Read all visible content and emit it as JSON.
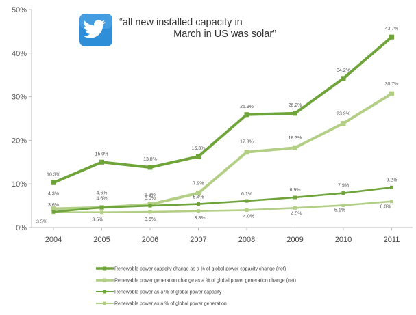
{
  "quote": {
    "icon": "twitter-bird-icon",
    "icon_color": "#2f8ed8",
    "line1": "“all new installed capacity in",
    "line2": "March in US was solar”"
  },
  "chart_data": {
    "type": "line",
    "title": "",
    "xlabel": "",
    "ylabel": "",
    "ylim": [
      0,
      50
    ],
    "yticks": [
      0,
      10,
      20,
      30,
      40,
      50
    ],
    "yticklabels": [
      "0%",
      "10%",
      "20%",
      "30%",
      "40%",
      "50%"
    ],
    "categories": [
      "2004",
      "2005",
      "2006",
      "2007",
      "2008",
      "2009",
      "2010",
      "2011"
    ],
    "grid": false,
    "legend_position": "bottom",
    "series": [
      {
        "name": "Renewable power capacity change as a % of global power capacity change (net)",
        "color": "#6fa43a",
        "values": [
          10.3,
          15.0,
          13.8,
          16.3,
          25.9,
          26.2,
          34.2,
          43.7
        ],
        "labels": [
          "10.3%",
          "15.0%",
          "13.8%",
          "16.3%",
          "25.9%",
          "26.2%",
          "34.2%",
          "43.7%"
        ]
      },
      {
        "name": "Renewable power generation change as a % of global power generation change (net)",
        "color": "#b3cf86",
        "values": [
          4.3,
          4.6,
          5.3,
          7.9,
          17.3,
          18.3,
          23.9,
          30.7
        ],
        "labels": [
          "4.3%",
          "4.6%",
          "5.3%",
          "7.9%",
          "17.3%",
          "18.3%",
          "23.9%",
          "30.7%"
        ]
      },
      {
        "name": "Renewable power as a % of global power capacity",
        "color": "#6fa43a",
        "values": [
          3.6,
          4.6,
          5.0,
          5.4,
          6.1,
          6.9,
          7.9,
          9.2
        ],
        "labels": [
          "3.6%",
          "4.6%",
          "5.0%",
          "5.4%",
          "6.1%",
          "6.9%",
          "7.9%",
          "9.2%"
        ]
      },
      {
        "name": "Renewable power as a % of global power generation",
        "color": "#b3cf86",
        "values": [
          3.5,
          3.5,
          3.6,
          3.8,
          4.0,
          4.5,
          5.1,
          6.0
        ],
        "labels": [
          "3.5%",
          "3.5%",
          "3.6%",
          "3.8%",
          "4.0%",
          "4.5%",
          "5.1%",
          "6.0%"
        ]
      }
    ]
  }
}
